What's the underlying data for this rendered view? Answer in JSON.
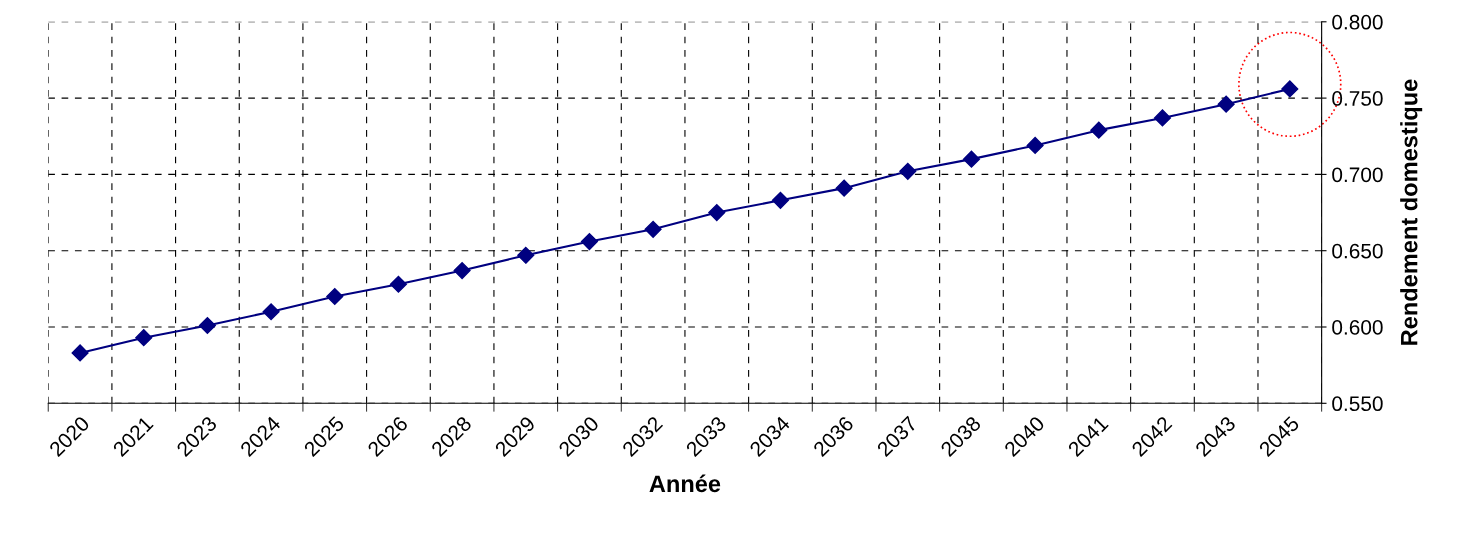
{
  "chart_data": {
    "type": "line",
    "xlabel": "Année",
    "ylabel": "Rendement domestique",
    "categories": [
      "2020",
      "2021",
      "2023",
      "2024",
      "2025",
      "2026",
      "2028",
      "2029",
      "2030",
      "2032",
      "2033",
      "2034",
      "2036",
      "2037",
      "2038",
      "2040",
      "2041",
      "2042",
      "2043",
      "2045"
    ],
    "series": [
      {
        "color": "#000080",
        "values": [
          0.583,
          0.593,
          0.601,
          0.61,
          0.62,
          0.628,
          0.637,
          0.647,
          0.656,
          0.664,
          0.675,
          0.683,
          0.691,
          0.702,
          0.71,
          0.719,
          0.729,
          0.737,
          0.746,
          0.756
        ]
      }
    ],
    "ylim": [
      0.55,
      0.8
    ],
    "yticks": [
      {
        "value": 0.55,
        "label": "0.550"
      },
      {
        "value": 0.6,
        "label": "0.600"
      },
      {
        "value": 0.65,
        "label": "0.650"
      },
      {
        "value": 0.7,
        "label": "0.700"
      },
      {
        "value": 0.75,
        "label": "0.750"
      },
      {
        "value": 0.8,
        "label": "0.800"
      }
    ],
    "grid": true,
    "marker": "diamond",
    "line_style": "solid",
    "legend": false
  }
}
